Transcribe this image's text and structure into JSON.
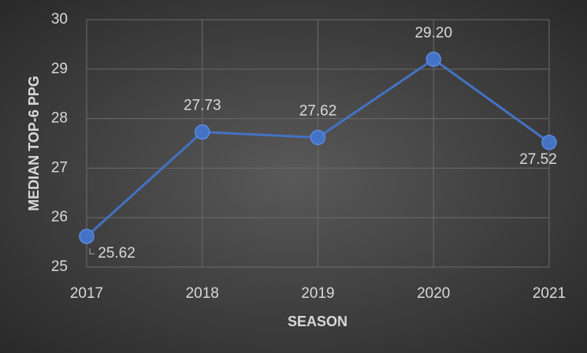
{
  "chart_data": {
    "type": "line",
    "x": [
      2017,
      2018,
      2019,
      2020,
      2021
    ],
    "xlim": [
      2017,
      2021
    ],
    "xticks": [
      2017,
      2018,
      2019,
      2020,
      2021
    ],
    "ylim": [
      25,
      30
    ],
    "yticks": [
      25,
      26,
      27,
      28,
      29,
      30
    ],
    "x_label": "SEASON",
    "y_label": "MEDIAN TOP-6 PPG",
    "grid": true,
    "series": [
      {
        "name": "Median Top-6 PPG",
        "color": "#4472c4",
        "values": [
          25.62,
          27.73,
          27.62,
          29.2,
          27.52
        ],
        "value_labels": [
          "25.62",
          "27.73",
          "27.62",
          "29.20",
          "27.52"
        ]
      }
    ]
  }
}
